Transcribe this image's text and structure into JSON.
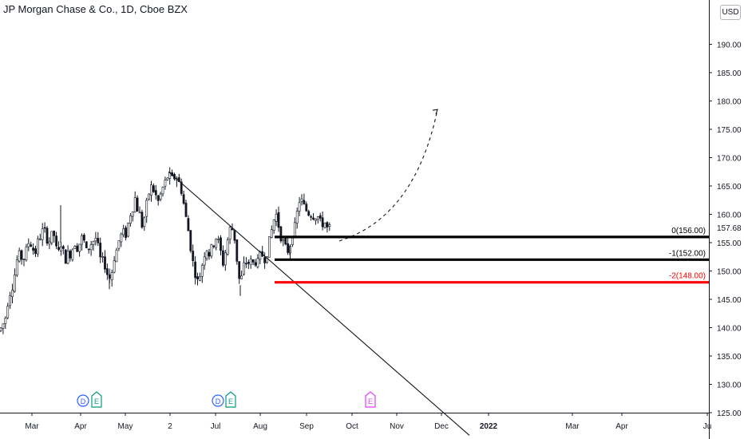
{
  "header": {
    "symbol_title": "JP Morgan Chase & Co., 1D, Cboe BZX",
    "currency": "USD"
  },
  "colors": {
    "up": "#26a69a",
    "down": "#ef5350",
    "candle_stroke": "#131722",
    "level_black": "#000000",
    "level_red": "#ff0000",
    "dividend_badge": "#2962ff",
    "earnings_badge": "#089981",
    "earnings_future_badge": "#e040fb"
  },
  "chart_data": {
    "type": "candlestick",
    "title": "JP Morgan Chase & Co., 1D, Cboe BZX",
    "ylim": [
      125,
      198
    ],
    "y_ticks": [
      125,
      130,
      135,
      140,
      145,
      150,
      155,
      160,
      165,
      170,
      175,
      180,
      185,
      190
    ],
    "y_tick_labels": [
      "125.00",
      "130.00",
      "135.00",
      "140.00",
      "145.00",
      "150.00",
      "155.00",
      "160.00",
      "165.00",
      "170.00",
      "175.00",
      "180.00",
      "185.00",
      "190.00"
    ],
    "current_price_label": "157.68",
    "current_price": 157.68,
    "x_tick_labels": [
      "Mar",
      "Apr",
      "May",
      "2",
      "Jul",
      "Aug",
      "Sep",
      "Oct",
      "Nov",
      "Dec",
      "2022",
      "Mar",
      "Apr",
      "Ju"
    ],
    "x_tick_bold": [
      "2022"
    ],
    "price_path": [
      [
        0,
        139.5
      ],
      [
        3,
        140.5
      ],
      [
        6,
        141
      ],
      [
        9,
        144
      ],
      [
        12,
        146
      ],
      [
        15,
        147
      ],
      [
        18,
        149
      ],
      [
        20,
        151
      ],
      [
        23,
        153
      ],
      [
        26,
        152.5
      ],
      [
        29,
        152
      ],
      [
        32,
        153
      ],
      [
        35,
        155
      ],
      [
        38,
        155
      ],
      [
        41,
        154
      ],
      [
        44,
        153
      ],
      [
        47,
        155
      ],
      [
        50,
        156
      ],
      [
        53,
        157
      ],
      [
        56,
        157
      ],
      [
        58,
        156
      ],
      [
        61,
        155
      ],
      [
        64,
        156
      ],
      [
        67,
        157
      ],
      [
        70,
        154
      ],
      [
        73,
        153
      ],
      [
        76,
        155
      ],
      [
        79,
        153.5
      ],
      [
        82,
        152
      ],
      [
        85,
        153
      ],
      [
        88,
        153
      ],
      [
        91,
        154
      ],
      [
        94,
        155
      ],
      [
        97,
        154
      ],
      [
        100,
        155
      ],
      [
        103,
        156
      ],
      [
        106,
        155
      ],
      [
        109,
        153
      ],
      [
        112,
        154.5
      ],
      [
        115,
        155
      ],
      [
        118,
        155.5
      ],
      [
        121,
        156
      ],
      [
        124,
        153
      ],
      [
        127,
        151.5
      ],
      [
        130,
        152
      ],
      [
        133,
        150
      ],
      [
        136,
        149
      ],
      [
        139,
        148.5
      ],
      [
        142,
        152
      ],
      [
        145,
        153
      ],
      [
        148,
        155
      ],
      [
        151,
        156
      ],
      [
        154,
        157
      ],
      [
        157,
        156
      ],
      [
        160,
        158
      ],
      [
        163,
        160
      ],
      [
        166,
        161
      ],
      [
        169,
        163
      ],
      [
        172,
        161
      ],
      [
        175,
        160
      ],
      [
        178,
        158
      ],
      [
        181,
        159.5
      ],
      [
        184,
        162
      ],
      [
        187,
        164
      ],
      [
        190,
        165
      ],
      [
        193,
        164
      ],
      [
        196,
        163
      ],
      [
        199,
        162
      ],
      [
        202,
        164
      ],
      [
        205,
        165
      ],
      [
        208,
        166
      ],
      [
        211,
        167
      ],
      [
        214,
        166.5
      ],
      [
        217,
        166
      ],
      [
        220,
        167
      ],
      [
        223,
        166
      ],
      [
        226,
        165
      ],
      [
        229,
        163
      ],
      [
        232,
        160
      ],
      [
        235,
        158
      ],
      [
        238,
        155
      ],
      [
        241,
        152
      ],
      [
        244,
        150
      ],
      [
        247,
        148
      ],
      [
        250,
        149
      ],
      [
        253,
        151
      ],
      [
        256,
        153
      ],
      [
        259,
        154
      ],
      [
        262,
        153
      ],
      [
        265,
        154
      ],
      [
        268,
        155
      ],
      [
        271,
        156
      ],
      [
        274,
        155
      ],
      [
        277,
        153
      ],
      [
        280,
        151
      ],
      [
        283,
        154
      ],
      [
        286,
        156
      ],
      [
        289,
        158
      ],
      [
        292,
        157
      ],
      [
        295,
        155
      ],
      [
        298,
        150
      ],
      [
        301,
        147.5
      ],
      [
        304,
        150
      ],
      [
        307,
        152
      ],
      [
        310,
        151
      ],
      [
        313,
        152
      ],
      [
        316,
        151
      ],
      [
        319,
        152
      ],
      [
        322,
        151
      ],
      [
        325,
        152.5
      ],
      [
        328,
        153
      ],
      [
        331,
        152
      ],
      [
        334,
        153
      ],
      [
        337,
        155
      ],
      [
        340,
        157
      ],
      [
        343,
        159
      ],
      [
        346,
        160
      ],
      [
        349,
        158
      ],
      [
        352,
        156
      ],
      [
        355,
        155
      ],
      [
        358,
        154
      ],
      [
        361,
        153.5
      ],
      [
        364,
        155
      ],
      [
        367,
        157
      ],
      [
        370,
        158
      ],
      [
        373,
        161
      ],
      [
        376,
        163
      ],
      [
        379,
        162
      ],
      [
        382,
        161
      ],
      [
        385,
        160.5
      ],
      [
        388,
        160
      ],
      [
        391,
        160
      ],
      [
        394,
        159.5
      ],
      [
        397,
        160
      ],
      [
        400,
        159
      ],
      [
        403,
        158
      ],
      [
        406,
        159
      ],
      [
        409,
        157.5
      ],
      [
        412,
        157.5
      ],
      [
        415,
        157.7
      ]
    ],
    "trendline": {
      "from": [
        211,
        167.5
      ],
      "to": [
        588,
        121
      ]
    },
    "projection_path": {
      "from": [
        425,
        155.3
      ],
      "to": [
        548,
        178.5
      ],
      "style": "dashed"
    },
    "levels": [
      {
        "label": "0(156.00)",
        "value": 156.0,
        "from_x": 344,
        "color": "black"
      },
      {
        "label": "-1(152.00)",
        "value": 152.0,
        "from_x": 344,
        "color": "black"
      },
      {
        "label": "-2(148.00)",
        "value": 148.0,
        "from_x": 344,
        "color": "red"
      }
    ],
    "events": [
      {
        "type": "dividend",
        "label": "D",
        "x": 104
      },
      {
        "type": "earnings",
        "label": "E",
        "x": 121
      },
      {
        "type": "dividend",
        "label": "D",
        "x": 273
      },
      {
        "type": "earnings",
        "label": "E",
        "x": 289
      },
      {
        "type": "earnings-upcoming",
        "label": "E",
        "x": 464
      }
    ]
  }
}
